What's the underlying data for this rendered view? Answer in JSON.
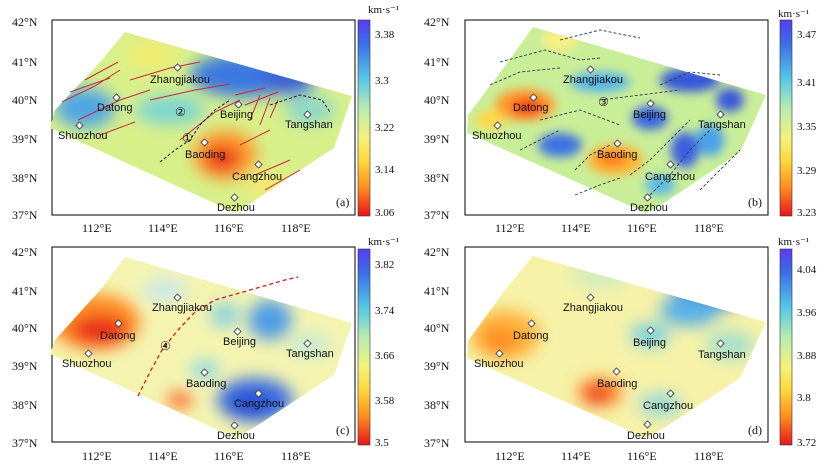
{
  "panels": [
    {
      "id": "a",
      "label": "(a)",
      "colorbar": {
        "unit": "km·s⁻¹",
        "ticks": [
          "3.38",
          "3.3",
          "3.22",
          "3.14",
          "3.06"
        ]
      },
      "lat_labels": [
        "42°N",
        "41°N",
        "40°N",
        "39°N",
        "38°N",
        "37°N"
      ],
      "lon_labels": [
        "112°E",
        "114°E",
        "116°E",
        "118°E"
      ],
      "cities": [
        "Zhangjiakou",
        "Datong",
        "Beijing",
        "Tangshan",
        "Shuozhou",
        "Baoding",
        "Cangzhou",
        "Dezhou"
      ],
      "markers": [
        "②",
        "①"
      ]
    },
    {
      "id": "b",
      "label": "(b)",
      "colorbar": {
        "unit": "km·s⁻¹",
        "ticks": [
          "3.47",
          "3.41",
          "3.35",
          "3.29",
          "3.23"
        ]
      },
      "lat_labels": [
        "42°N",
        "41°N",
        "40°N",
        "39°N",
        "38°N",
        "37°N"
      ],
      "lon_labels": [
        "112°E",
        "114°E",
        "116°E",
        "118°E"
      ],
      "cities": [
        "Zhangjiakou",
        "Datong",
        "Beijing",
        "Tangshan",
        "Shuozhou",
        "Baoding",
        "Cangzhou",
        "Dezhou"
      ],
      "markers": [
        "③"
      ]
    },
    {
      "id": "c",
      "label": "(c)",
      "colorbar": {
        "unit": "km·s⁻¹",
        "ticks": [
          "3.82",
          "3.74",
          "3.66",
          "3.58",
          "3.5"
        ]
      },
      "lat_labels": [
        "42°N",
        "41°N",
        "40°N",
        "39°N",
        "38°N",
        "37°N"
      ],
      "lon_labels": [
        "112°E",
        "114°E",
        "116°E",
        "118°E"
      ],
      "cities": [
        "Zhangjiakou",
        "Datong",
        "Beijing",
        "Tangshan",
        "Shuozhou",
        "Baoding",
        "Cangzhou",
        "Dezhou"
      ],
      "markers": [
        "④"
      ]
    },
    {
      "id": "d",
      "label": "(d)",
      "colorbar": {
        "unit": "km·s⁻¹",
        "ticks": [
          "4.04",
          "3.96",
          "3.88",
          "3.8",
          "3.72"
        ]
      },
      "lat_labels": [
        "42°N",
        "41°N",
        "40°N",
        "39°N",
        "38°N",
        "37°N"
      ],
      "lon_labels": [
        "112°E",
        "114°E",
        "116°E",
        "118°E"
      ],
      "cities": [
        "Zhangjiakou",
        "Datong",
        "Beijing",
        "Tangshan",
        "Shuozhou",
        "Baoding",
        "Cangzhou",
        "Dezhou"
      ],
      "markers": []
    }
  ]
}
